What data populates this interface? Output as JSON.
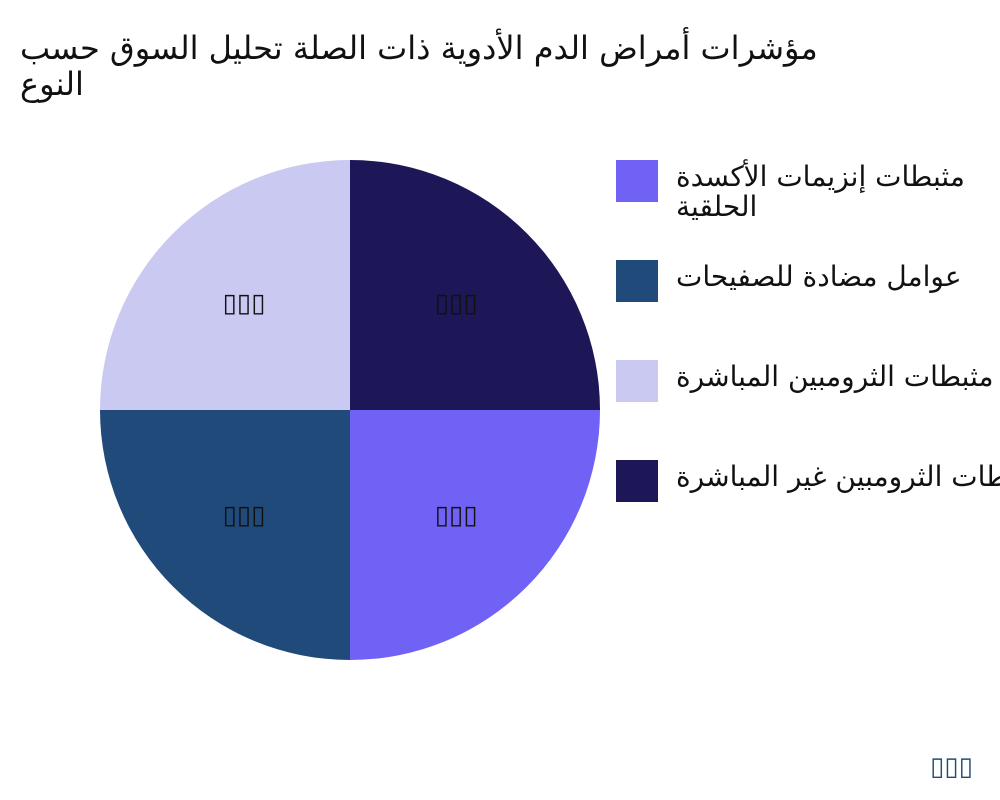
{
  "title_lines": [
    "مؤشرات أمراض الدم الأدوية ذات الصلة تحليل السوق حسب",
    "النوع"
  ],
  "chart_data": {
    "type": "pie",
    "title": "مؤشرات أمراض الدم الأدوية ذات الصلة تحليل السوق حسب النوع",
    "legend_position": "right",
    "series": [
      {
        "name": "مثبطات إنزيمات الأكسدة الحلقية",
        "label_lines": [
          "مثبطات إنزيمات الأكسدة",
          "الحلقية"
        ],
        "value": 25,
        "data_label": "▯▯▯",
        "color": "#7062f4"
      },
      {
        "name": "عوامل مضادة للصفيحات",
        "label_lines": [
          "عوامل مضادة للصفيحات"
        ],
        "value": 25,
        "data_label": "▯▯▯",
        "color": "#1f4a7a"
      },
      {
        "name": "مثبطات الثرومبين المباشرة",
        "label_lines": [
          "مثبطات الثرومبين المباشرة"
        ],
        "value": 25,
        "data_label": "▯▯▯",
        "color": "#c9c9f1"
      },
      {
        "name": "مثبطات الثرومبين غير المباشرة",
        "label_lines": [
          "مثبطات الثرومبين غير المباشرة"
        ],
        "value": 25,
        "data_label": "▯▯▯",
        "color": "#1d1657"
      }
    ]
  },
  "watermark": "▯▯▯"
}
